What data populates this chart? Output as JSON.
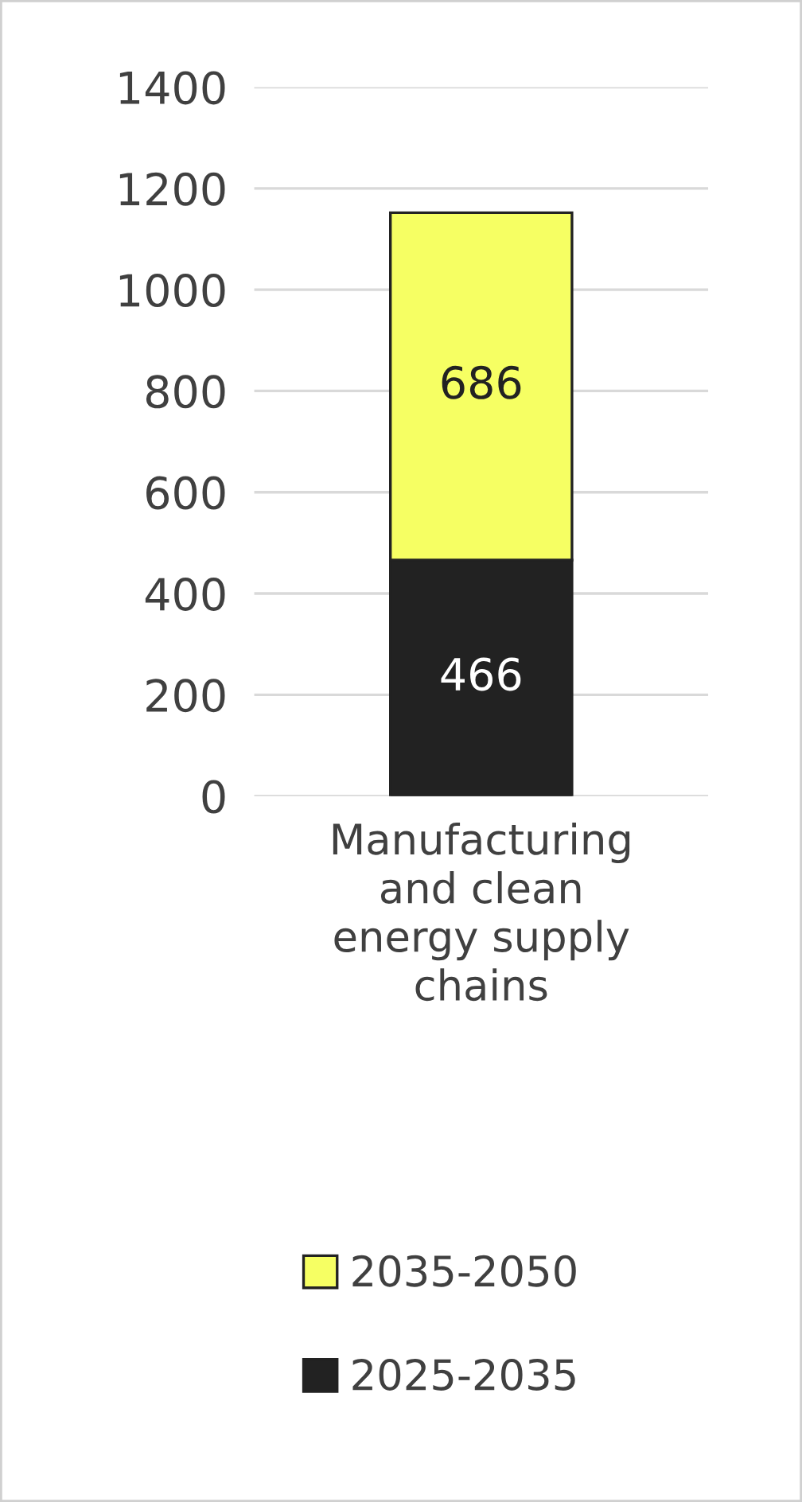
{
  "chart_data": {
    "type": "bar",
    "stacked": true,
    "categories": [
      "Manufacturing\nand clean\nenergy supply\nchains"
    ],
    "series": [
      {
        "name": "2025-2035",
        "color": "#222222",
        "values": [
          466
        ]
      },
      {
        "name": "2035-2050",
        "color": "#f6ff63",
        "values": [
          686
        ]
      }
    ],
    "ylim": [
      0,
      1400
    ],
    "yticks": [
      0,
      200,
      400,
      600,
      800,
      1000,
      1200,
      1400
    ],
    "grid": "y",
    "legend": "bottom",
    "data_labels": true
  }
}
